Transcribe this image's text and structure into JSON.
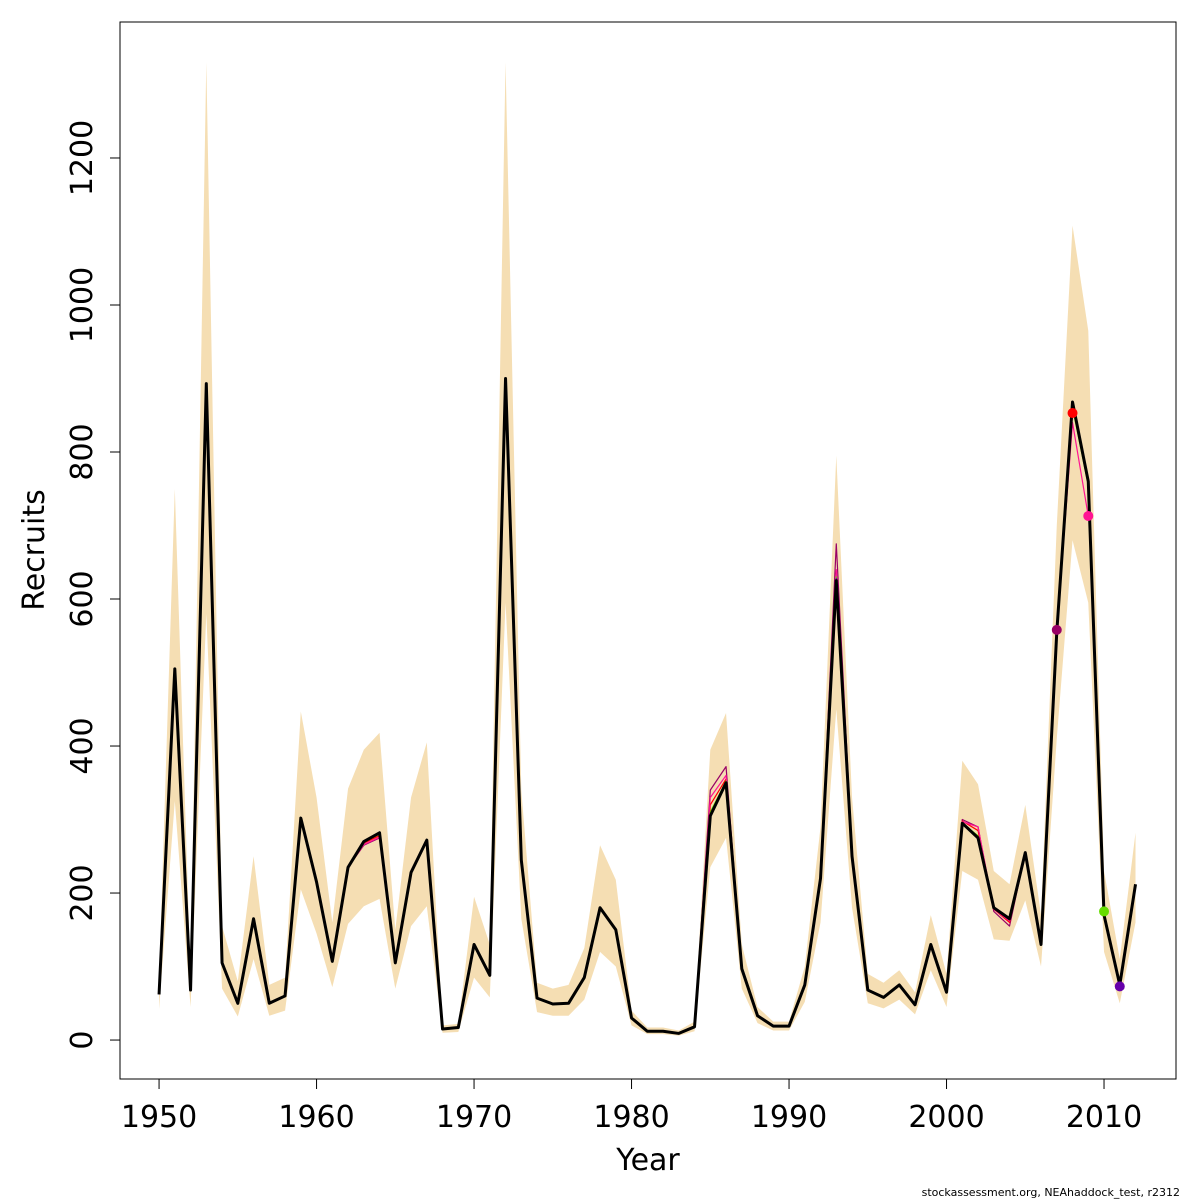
{
  "chart_data": {
    "type": "line",
    "x_label": "Year",
    "y_label": "Recruits",
    "footer": "stockassessment.org, NEAhaddock_test, r2312",
    "xlim": [
      1947.52,
      2014.57
    ],
    "ylim": [
      -53,
      1385
    ],
    "xticks": [
      1950,
      1960,
      1970,
      1980,
      1990,
      2000,
      2010
    ],
    "yticks": [
      0,
      200,
      400,
      600,
      800,
      1000,
      1200
    ],
    "x": [
      1950,
      1951,
      1952,
      1953,
      1954,
      1955,
      1956,
      1957,
      1958,
      1959,
      1960,
      1961,
      1962,
      1963,
      1964,
      1965,
      1966,
      1967,
      1968,
      1969,
      1970,
      1971,
      1972,
      1973,
      1974,
      1975,
      1976,
      1977,
      1978,
      1979,
      1980,
      1981,
      1982,
      1983,
      1984,
      1985,
      1986,
      1987,
      1988,
      1989,
      1990,
      1991,
      1992,
      1993,
      1994,
      1995,
      1996,
      1997,
      1998,
      1999,
      2000,
      2001,
      2002,
      2003,
      2004,
      2005,
      2006,
      2007,
      2008,
      2009,
      2010,
      2011,
      2012
    ],
    "band": {
      "color": "#f5deb3",
      "lower": [
        42,
        325,
        45,
        580,
        70,
        32,
        110,
        33,
        40,
        205,
        145,
        72,
        158,
        182,
        192,
        70,
        155,
        182,
        10,
        11,
        85,
        58,
        595,
        165,
        38,
        33,
        33,
        55,
        120,
        100,
        20,
        8,
        8,
        6,
        12,
        235,
        275,
        70,
        23,
        13,
        13,
        52,
        160,
        450,
        180,
        50,
        43,
        55,
        35,
        95,
        45,
        230,
        218,
        137,
        135,
        190,
        100,
        410,
        680,
        595,
        120,
        50,
        160
      ],
      "upper": [
        80,
        750,
        90,
        1330,
        155,
        80,
        250,
        75,
        85,
        447,
        330,
        160,
        342,
        395,
        418,
        150,
        330,
        405,
        20,
        22,
        195,
        130,
        1330,
        340,
        78,
        70,
        75,
        125,
        265,
        218,
        40,
        17,
        17,
        13,
        25,
        395,
        445,
        130,
        45,
        25,
        25,
        100,
        290,
        795,
        330,
        90,
        78,
        95,
        65,
        170,
        90,
        380,
        348,
        230,
        212,
        320,
        170,
        700,
        1108,
        965,
        230,
        110,
        282
      ]
    },
    "series": [
      {
        "color": "#990066",
        "end_marker": true,
        "values": [
          62,
          505,
          68,
          893,
          105,
          50,
          165,
          50,
          60,
          302,
          215,
          107,
          235,
          265,
          275,
          105,
          228,
          272,
          15,
          17,
          130,
          88,
          900,
          245,
          57,
          49,
          50,
          85,
          180,
          150,
          30,
          12,
          12,
          9,
          18,
          340,
          372,
          97,
          33,
          19,
          19,
          75,
          220,
          675,
          255,
          68,
          58,
          75,
          48,
          130,
          65,
          300,
          290,
          175,
          155,
          255,
          130,
          558,
          null,
          null,
          null,
          null,
          null
        ]
      },
      {
        "color": "#ff0000",
        "end_marker": true,
        "values": [
          62,
          505,
          68,
          893,
          105,
          50,
          165,
          50,
          60,
          302,
          215,
          107,
          235,
          268,
          278,
          105,
          228,
          272,
          15,
          17,
          130,
          88,
          900,
          245,
          57,
          49,
          50,
          85,
          180,
          150,
          30,
          12,
          12,
          9,
          18,
          320,
          355,
          97,
          33,
          19,
          19,
          75,
          220,
          620,
          250,
          68,
          58,
          75,
          48,
          130,
          65,
          298,
          285,
          178,
          160,
          255,
          130,
          560,
          853,
          null,
          null,
          null,
          null
        ]
      },
      {
        "color": "#ff1493",
        "end_marker": true,
        "values": [
          62,
          505,
          68,
          893,
          105,
          50,
          165,
          50,
          60,
          302,
          215,
          107,
          235,
          266,
          276,
          105,
          228,
          272,
          15,
          17,
          130,
          88,
          900,
          245,
          57,
          49,
          50,
          85,
          180,
          150,
          30,
          12,
          12,
          9,
          18,
          330,
          360,
          97,
          33,
          19,
          19,
          75,
          220,
          640,
          252,
          68,
          58,
          75,
          48,
          130,
          65,
          297,
          290,
          178,
          162,
          255,
          130,
          556,
          840,
          713,
          null,
          null,
          null
        ]
      },
      {
        "color": "#66dd00",
        "end_marker": true,
        "values": [
          62,
          505,
          68,
          893,
          105,
          50,
          165,
          50,
          60,
          302,
          215,
          107,
          235,
          270,
          280,
          105,
          228,
          272,
          15,
          17,
          130,
          88,
          900,
          245,
          57,
          49,
          50,
          85,
          180,
          150,
          30,
          12,
          12,
          9,
          18,
          310,
          352,
          97,
          33,
          19,
          19,
          75,
          220,
          630,
          250,
          68,
          58,
          75,
          48,
          130,
          65,
          295,
          278,
          180,
          165,
          255,
          130,
          555,
          860,
          755,
          175,
          null,
          null
        ]
      },
      {
        "color": "#6600aa",
        "end_marker": true,
        "values": [
          62,
          505,
          68,
          893,
          105,
          50,
          165,
          50,
          60,
          302,
          215,
          107,
          235,
          270,
          281,
          105,
          228,
          272,
          15,
          17,
          130,
          88,
          900,
          245,
          57,
          49,
          50,
          85,
          180,
          150,
          30,
          12,
          12,
          9,
          18,
          307,
          350,
          97,
          33,
          19,
          19,
          75,
          220,
          628,
          250,
          68,
          58,
          75,
          48,
          130,
          65,
          295,
          276,
          180,
          165,
          255,
          130,
          555,
          865,
          757,
          172,
          73,
          null
        ]
      },
      {
        "color": "#000000",
        "width": 3,
        "values": [
          62,
          505,
          68,
          893,
          105,
          50,
          165,
          50,
          60,
          302,
          215,
          107,
          235,
          270,
          282,
          105,
          228,
          272,
          15,
          17,
          130,
          88,
          900,
          245,
          57,
          49,
          50,
          85,
          180,
          150,
          30,
          12,
          12,
          9,
          18,
          305,
          350,
          97,
          33,
          19,
          19,
          75,
          220,
          625,
          250,
          68,
          58,
          75,
          48,
          130,
          65,
          295,
          275,
          180,
          165,
          255,
          130,
          555,
          868,
          760,
          170,
          75,
          212
        ]
      }
    ]
  }
}
